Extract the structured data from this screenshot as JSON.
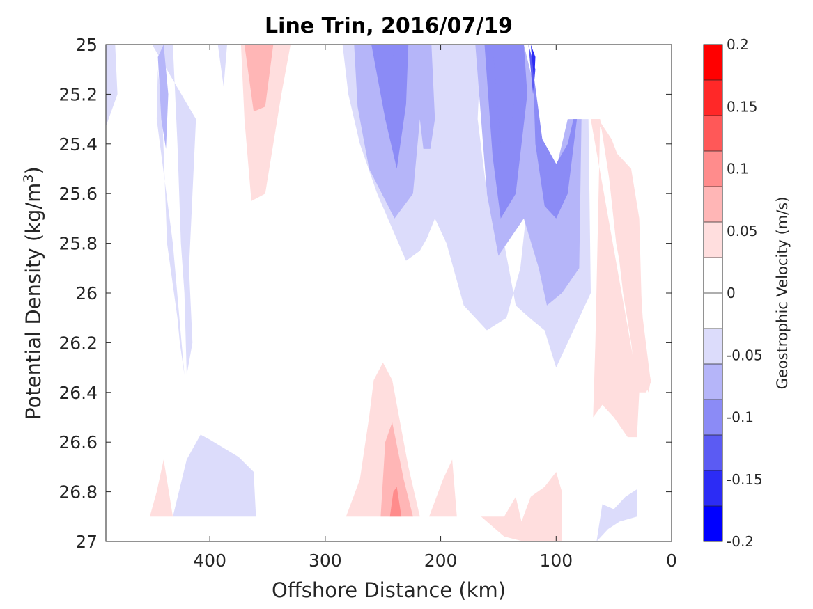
{
  "chart_data": {
    "type": "heatmap",
    "subtype": "filled-contour",
    "title": "Line Trin, 2016/07/19",
    "xlabel": "Offshore Distance (km)",
    "ylabel": "Potential Density (kg/m3)",
    "ylabel_text": "Potential Density (kg/m",
    "ylabel_superscript": "3",
    "ylabel_close": ")",
    "xlim": [
      490,
      0
    ],
    "ylim": [
      25,
      27
    ],
    "x_reversed": true,
    "y_reversed": true,
    "xticks": [
      "400",
      "300",
      "200",
      "100",
      "0"
    ],
    "yticks": [
      "25",
      "25.2",
      "25.4",
      "25.6",
      "25.8",
      "26",
      "26.2",
      "26.4",
      "26.6",
      "26.8",
      "27"
    ],
    "colorbar": {
      "label": "Geostrophic Velocity (m/s)",
      "range": [
        -0.2,
        0.2
      ],
      "step": 0.025,
      "ticks": [
        "0.2",
        "0.15",
        "0.1",
        "0.05",
        "0",
        "-0.05",
        "-0.1",
        "-0.15",
        "-0.2"
      ],
      "colors_top_to_bottom": [
        "#ff0000",
        "#ff2828",
        "#ff5858",
        "#ff8c8c",
        "#ffb6b6",
        "#ffdede",
        "#ffffff",
        "#ffffff",
        "#dcdcfb",
        "#b5b5f9",
        "#8b8bf6",
        "#5b5bf3",
        "#2c2cf5",
        "#0000ff"
      ]
    },
    "level_colors": {
      "-0.175": "#2c2cf5",
      "-0.15": "#5b5bf3",
      "-0.125": "#8b8bf6",
      "-0.1": "#8b8bf6",
      "-0.075": "#b5b5f9",
      "-0.05": "#dcdcfb",
      "0.05": "#ffdede",
      "0.075": "#ffb6b6",
      "0.1": "#ff8c8c"
    },
    "regions": [
      {
        "level": -0.05,
        "points": [
          [
            490,
            25
          ],
          [
            482,
            25
          ],
          [
            480,
            25.2
          ],
          [
            490,
            25.33
          ]
        ]
      },
      {
        "level": -0.05,
        "points": [
          [
            450,
            25
          ],
          [
            432,
            25
          ],
          [
            428,
            25.4
          ],
          [
            425,
            25.8
          ],
          [
            422,
            26.0
          ],
          [
            420,
            26.33
          ],
          [
            415,
            26.2
          ],
          [
            418,
            25.9
          ],
          [
            415,
            25.6
          ],
          [
            412,
            25.3
          ]
        ]
      },
      {
        "level": -0.05,
        "points": [
          [
            445,
            25.1
          ],
          [
            441,
            25.3
          ],
          [
            437,
            25.8
          ],
          [
            428,
            26.1
          ],
          [
            426,
            26.2
          ],
          [
            422,
            26.33
          ],
          [
            432,
            25.8
          ],
          [
            446,
            25.3
          ]
        ]
      },
      {
        "level": -0.075,
        "points": [
          [
            445,
            25.05
          ],
          [
            440,
            25
          ],
          [
            436,
            25.2
          ],
          [
            438,
            25.42
          ],
          [
            442,
            25.3
          ]
        ]
      },
      {
        "level": -0.05,
        "points": [
          [
            393,
            25
          ],
          [
            385,
            25
          ],
          [
            388,
            25.17
          ]
        ]
      },
      {
        "level": -0.05,
        "points": [
          [
            285,
            25
          ],
          [
            165,
            25
          ],
          [
            168,
            25.3
          ],
          [
            160,
            25.6
          ],
          [
            145,
            25.8
          ],
          [
            135,
            26.05
          ],
          [
            123,
            26.1
          ],
          [
            110,
            26.15
          ],
          [
            100,
            26.3
          ],
          [
            80,
            26.1
          ],
          [
            70,
            26.0
          ],
          [
            72,
            25.3
          ],
          [
            82,
            25.3
          ],
          [
            100,
            25.5
          ],
          [
            113,
            25.4
          ],
          [
            120,
            25.1
          ],
          [
            124,
            25.6
          ],
          [
            131,
            25.9
          ],
          [
            143,
            26.1
          ],
          [
            160,
            26.15
          ],
          [
            180,
            26.05
          ],
          [
            195,
            25.8
          ],
          [
            205,
            25.7
          ],
          [
            212,
            25.78
          ],
          [
            218,
            25.83
          ],
          [
            230,
            25.87
          ],
          [
            255,
            25.6
          ],
          [
            270,
            25.4
          ],
          [
            280,
            25.2
          ]
        ]
      },
      {
        "level": -0.075,
        "points": [
          [
            275,
            25
          ],
          [
            208,
            25
          ],
          [
            205,
            25.3
          ],
          [
            209,
            25.42
          ],
          [
            215,
            25.42
          ],
          [
            218,
            25.3
          ],
          [
            224,
            25.6
          ],
          [
            240,
            25.7
          ],
          [
            262,
            25.5
          ],
          [
            272,
            25.25
          ]
        ]
      },
      {
        "level": -0.1,
        "points": [
          [
            260,
            25
          ],
          [
            228,
            25
          ],
          [
            230,
            25.24
          ],
          [
            238,
            25.5
          ],
          [
            248,
            25.3
          ]
        ]
      },
      {
        "level": -0.125,
        "points": [
          [
            250,
            25
          ],
          [
            240,
            25
          ],
          [
            243,
            25.1
          ]
        ]
      },
      {
        "level": -0.075,
        "points": [
          [
            170,
            25
          ],
          [
            128,
            25
          ],
          [
            120,
            25.15
          ],
          [
            115,
            25.4
          ],
          [
            100,
            25.5
          ],
          [
            90,
            25.3
          ],
          [
            78,
            25.3
          ],
          [
            80,
            25.9
          ],
          [
            95,
            26.0
          ],
          [
            108,
            26.05
          ],
          [
            115,
            25.9
          ],
          [
            128,
            25.7
          ],
          [
            150,
            25.85
          ],
          [
            160,
            25.6
          ],
          [
            165,
            25.3
          ]
        ]
      },
      {
        "level": -0.1,
        "points": [
          [
            162,
            25
          ],
          [
            128,
            25
          ],
          [
            125,
            25.2
          ],
          [
            130,
            25.4
          ],
          [
            135,
            25.6
          ],
          [
            148,
            25.7
          ],
          [
            155,
            25.45
          ]
        ]
      },
      {
        "level": -0.1,
        "points": [
          [
            120,
            25.1
          ],
          [
            112,
            25.38
          ],
          [
            100,
            25.48
          ],
          [
            90,
            25.4
          ],
          [
            85,
            25.3
          ],
          [
            82,
            25.3
          ],
          [
            90,
            25.6
          ],
          [
            100,
            25.7
          ],
          [
            110,
            25.65
          ],
          [
            118,
            25.4
          ]
        ]
      },
      {
        "level": -0.125,
        "points": [
          [
            155,
            25
          ],
          [
            130,
            25
          ],
          [
            138,
            25.3
          ],
          [
            148,
            25.4
          ]
        ]
      },
      {
        "level": -0.15,
        "points": [
          [
            124,
            25
          ],
          [
            118,
            25.1
          ],
          [
            120,
            25.2
          ]
        ]
      },
      {
        "level": -0.175,
        "points": [
          [
            122,
            25
          ],
          [
            118,
            25.05
          ],
          [
            119,
            25.15
          ]
        ]
      },
      {
        "level": 0.05,
        "points": [
          [
            373,
            25
          ],
          [
            330,
            25
          ],
          [
            338,
            25.2
          ],
          [
            345,
            25.4
          ],
          [
            352,
            25.6
          ],
          [
            364,
            25.63
          ],
          [
            370,
            25.3
          ]
        ]
      },
      {
        "level": 0.075,
        "points": [
          [
            370,
            25
          ],
          [
            345,
            25
          ],
          [
            352,
            25.25
          ],
          [
            362,
            25.27
          ]
        ]
      },
      {
        "level": 0.05,
        "points": [
          [
            70,
            25.3
          ],
          [
            62,
            25.3
          ],
          [
            55,
            25.5
          ],
          [
            48,
            25.8
          ],
          [
            40,
            26.0
          ],
          [
            30,
            26.3
          ],
          [
            20,
            26.4
          ],
          [
            18,
            26.35
          ],
          [
            25,
            26.2
          ],
          [
            28,
            25.7
          ],
          [
            35,
            25.5
          ],
          [
            55,
            25.4
          ],
          [
            62,
            25.33
          ],
          [
            66,
            26.2
          ],
          [
            68,
            26.5
          ],
          [
            60,
            26.45
          ],
          [
            50,
            26.5
          ],
          [
            38,
            26.58
          ],
          [
            30,
            26.58
          ],
          [
            28,
            26.4
          ]
        ]
      },
      {
        "level": 0.05,
        "points": [
          [
            70,
            25.3
          ],
          [
            62,
            25.3
          ],
          [
            52,
            25.6
          ],
          [
            42,
            26.0
          ],
          [
            35,
            26.2
          ],
          [
            30,
            26.4
          ],
          [
            22,
            26.4
          ],
          [
            18,
            26.36
          ],
          [
            25,
            26.1
          ],
          [
            30,
            25.75
          ],
          [
            38,
            25.55
          ],
          [
            52,
            25.38
          ],
          [
            62,
            25.31
          ]
        ]
      },
      {
        "level": -0.05,
        "points": [
          [
            360,
            26.9
          ],
          [
            362,
            26.72
          ],
          [
            375,
            26.66
          ],
          [
            400,
            26.59
          ],
          [
            408,
            26.57
          ],
          [
            420,
            26.67
          ],
          [
            432,
            26.9
          ]
        ]
      },
      {
        "level": 0.05,
        "points": [
          [
            452,
            26.9
          ],
          [
            432,
            26.9
          ],
          [
            440,
            26.67
          ],
          [
            446,
            26.8
          ]
        ]
      },
      {
        "level": 0.05,
        "points": [
          [
            282,
            26.9
          ],
          [
            218,
            26.9
          ],
          [
            228,
            26.7
          ],
          [
            242,
            26.35
          ],
          [
            250,
            26.28
          ],
          [
            258,
            26.35
          ],
          [
            262,
            26.5
          ],
          [
            270,
            26.75
          ]
        ]
      },
      {
        "level": 0.075,
        "points": [
          [
            252,
            26.9
          ],
          [
            224,
            26.9
          ],
          [
            232,
            26.75
          ],
          [
            242,
            26.52
          ],
          [
            248,
            26.6
          ]
        ]
      },
      {
        "level": 0.1,
        "points": [
          [
            244,
            26.9
          ],
          [
            234,
            26.9
          ],
          [
            238,
            26.78
          ],
          [
            241,
            26.8
          ]
        ]
      },
      {
        "level": 0.05,
        "points": [
          [
            210,
            26.9
          ],
          [
            186,
            26.9
          ],
          [
            190,
            26.67
          ],
          [
            198,
            26.75
          ]
        ]
      },
      {
        "level": 0.05,
        "points": [
          [
            165,
            26.9
          ],
          [
            145,
            26.9
          ],
          [
            135,
            26.82
          ],
          [
            130,
            26.92
          ],
          [
            122,
            26.82
          ],
          [
            110,
            26.78
          ],
          [
            100,
            26.72
          ],
          [
            95,
            26.8
          ],
          [
            95,
            27
          ],
          [
            128,
            27
          ],
          [
            145,
            26.98
          ]
        ]
      },
      {
        "level": -0.05,
        "points": [
          [
            65,
            27
          ],
          [
            60,
            26.85
          ],
          [
            50,
            26.87
          ],
          [
            40,
            26.82
          ],
          [
            30,
            26.79
          ],
          [
            30,
            26.9
          ],
          [
            45,
            26.92
          ],
          [
            55,
            26.95
          ]
        ]
      }
    ]
  }
}
